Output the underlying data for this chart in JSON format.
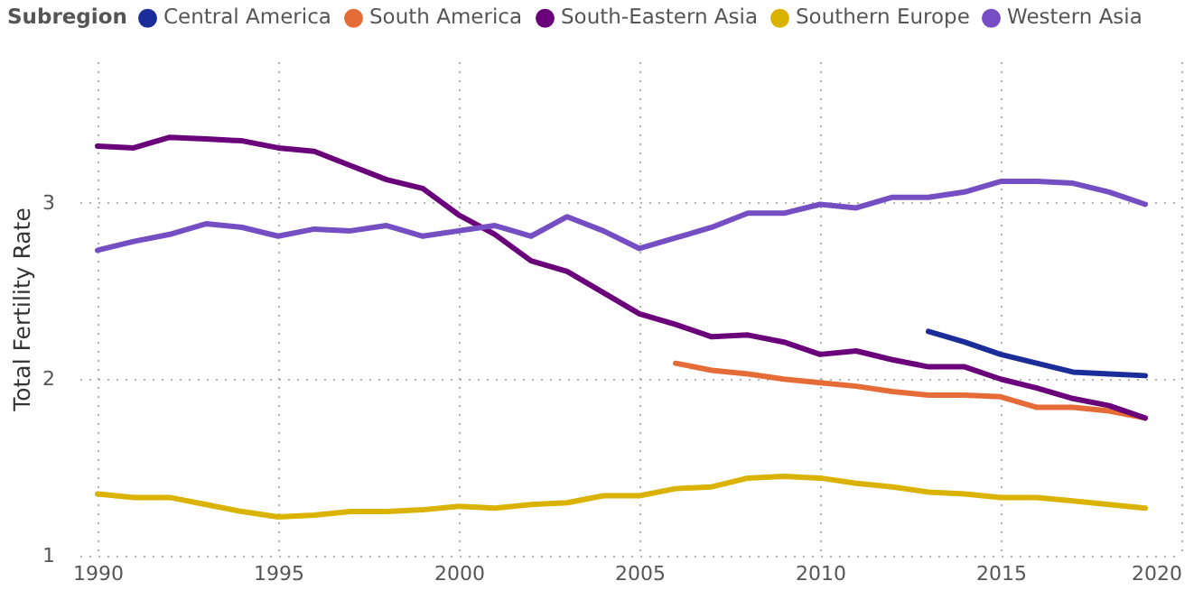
{
  "chart_data": {
    "type": "line",
    "ylabel": "Total Fertility Rate",
    "legend_title": "Subregion",
    "legend": "top left",
    "grid": true,
    "marker": "none",
    "line_style": "solid",
    "xlim": [
      1989.5,
      2020
    ],
    "xticks": [
      1990,
      1995,
      2000,
      2005,
      2010,
      2015,
      2020
    ],
    "ylim": [
      1,
      3.8
    ],
    "yticks": [
      1,
      2,
      3
    ],
    "series": [
      {
        "name": "Central America",
        "color": "#1a2d99",
        "x": [
          2013,
          2014,
          2015,
          2016,
          2017,
          2018,
          2019
        ],
        "values": [
          2.27,
          2.21,
          2.14,
          2.09,
          2.04,
          2.03,
          2.02
        ]
      },
      {
        "name": "South America",
        "color": "#e66c37",
        "x": [
          2006,
          2007,
          2008,
          2009,
          2010,
          2011,
          2012,
          2013,
          2014,
          2015,
          2016,
          2017,
          2018,
          2019
        ],
        "values": [
          2.09,
          2.05,
          2.03,
          2.0,
          1.98,
          1.96,
          1.93,
          1.91,
          1.91,
          1.9,
          1.84,
          1.84,
          1.82,
          1.78
        ]
      },
      {
        "name": "South-Eastern Asia",
        "color": "#6b007b",
        "x": [
          1990,
          1991,
          1992,
          1993,
          1994,
          1995,
          1996,
          1997,
          1998,
          1999,
          2000,
          2001,
          2002,
          2003,
          2004,
          2005,
          2006,
          2007,
          2008,
          2009,
          2010,
          2011,
          2012,
          2013,
          2014,
          2015,
          2016,
          2017,
          2018,
          2019
        ],
        "values": [
          3.32,
          3.31,
          3.37,
          3.36,
          3.35,
          3.31,
          3.29,
          3.21,
          3.13,
          3.08,
          2.93,
          2.82,
          2.67,
          2.61,
          2.49,
          2.37,
          2.31,
          2.24,
          2.25,
          2.21,
          2.14,
          2.16,
          2.11,
          2.07,
          2.07,
          2.0,
          1.95,
          1.89,
          1.85,
          1.78
        ]
      },
      {
        "name": "Southern Europe",
        "color": "#d9b300",
        "x": [
          1990,
          1991,
          1992,
          1993,
          1994,
          1995,
          1996,
          1997,
          1998,
          1999,
          2000,
          2001,
          2002,
          2003,
          2004,
          2005,
          2006,
          2007,
          2008,
          2009,
          2010,
          2011,
          2012,
          2013,
          2014,
          2015,
          2016,
          2017,
          2018,
          2019
        ],
        "values": [
          1.35,
          1.33,
          1.33,
          1.29,
          1.25,
          1.22,
          1.23,
          1.25,
          1.25,
          1.26,
          1.28,
          1.27,
          1.29,
          1.3,
          1.34,
          1.34,
          1.38,
          1.39,
          1.44,
          1.45,
          1.44,
          1.41,
          1.39,
          1.36,
          1.35,
          1.33,
          1.33,
          1.31,
          1.29,
          1.27
        ]
      },
      {
        "name": "Western Asia",
        "color": "#744ec2",
        "x": [
          1990,
          1991,
          1992,
          1993,
          1994,
          1995,
          1996,
          1997,
          1998,
          1999,
          2000,
          2001,
          2002,
          2003,
          2004,
          2005,
          2006,
          2007,
          2008,
          2009,
          2010,
          2011,
          2012,
          2013,
          2014,
          2015,
          2016,
          2017,
          2018,
          2019
        ],
        "values": [
          2.73,
          2.78,
          2.82,
          2.88,
          2.86,
          2.81,
          2.85,
          2.84,
          2.87,
          2.81,
          2.84,
          2.87,
          2.81,
          2.92,
          2.84,
          2.74,
          2.8,
          2.86,
          2.94,
          2.94,
          2.99,
          2.97,
          3.03,
          3.03,
          3.06,
          3.12,
          3.12,
          3.11,
          3.06,
          2.99
        ]
      }
    ]
  }
}
